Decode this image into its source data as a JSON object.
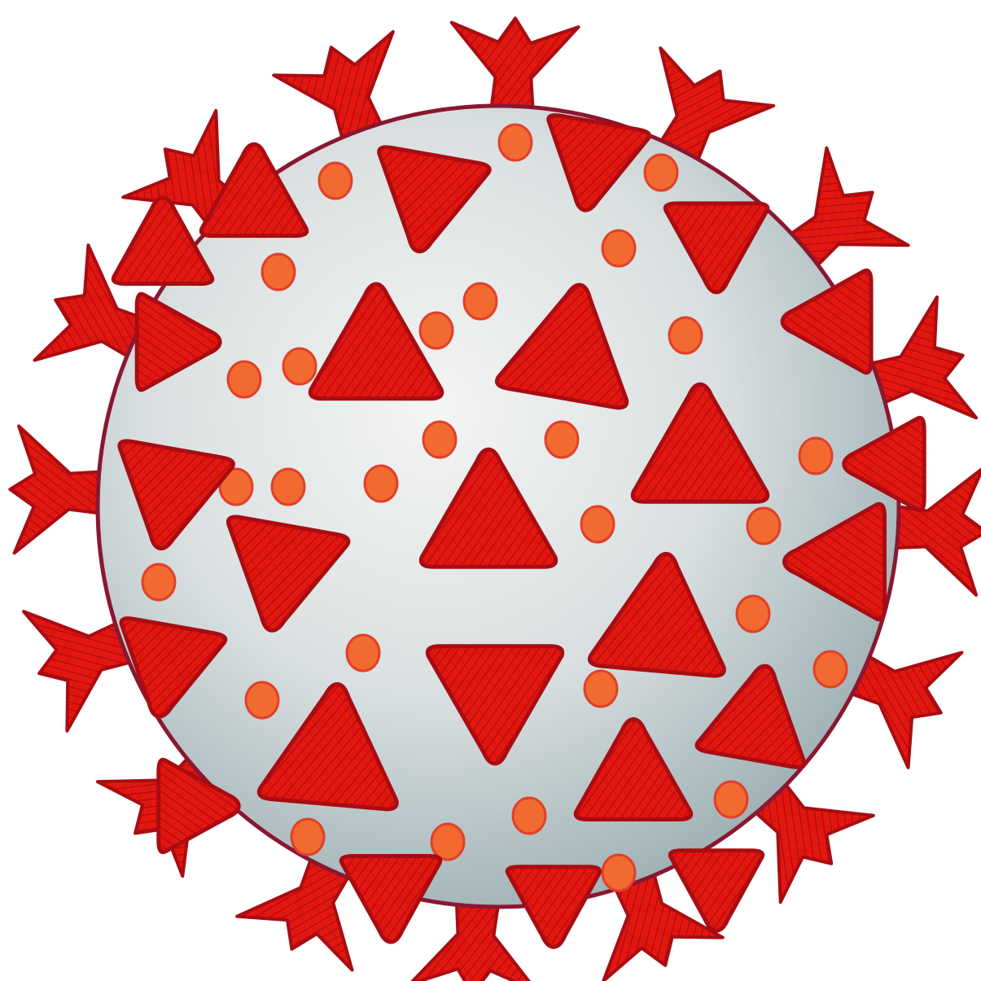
{
  "illustration": {
    "subject": "virus-particle-icon",
    "palette": {
      "background": "#ffffff",
      "envelope_light": "#eef0ef",
      "envelope_shadow": "#93a7ab",
      "envelope_outline": "#8a1730",
      "spike_fill": "#e5170f",
      "spike_dark": "#a80c12",
      "dot_fill": "#f26a30",
      "dot_outline": "#e0402a"
    }
  }
}
